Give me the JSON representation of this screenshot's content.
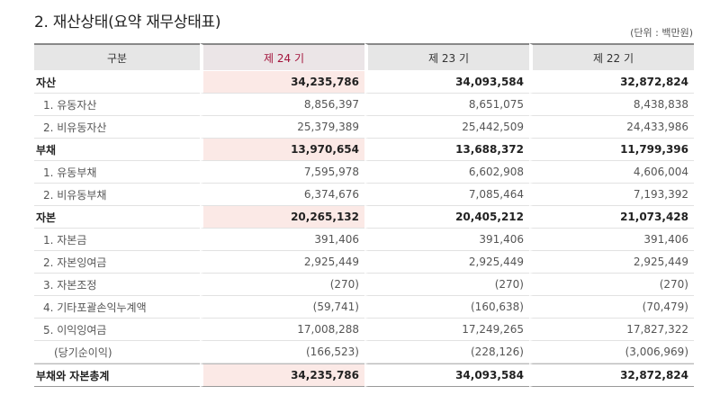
{
  "title": "2. 재산상태(요약 재무상태표)",
  "unit": "(단위 : 백만원)",
  "header": {
    "label": "구분",
    "columns": [
      "제 24 기",
      "제 23 기",
      "제 22 기"
    ]
  },
  "rows": [
    {
      "label": "자산",
      "values": [
        "34,235,786",
        "34,093,584",
        "32,872,824"
      ],
      "type": "major"
    },
    {
      "label": "1. 유동자산",
      "values": [
        "8,856,397",
        "8,651,075",
        "8,438,838"
      ],
      "type": "sub"
    },
    {
      "label": "2. 비유동자산",
      "values": [
        "25,379,389",
        "25,442,509",
        "24,433,986"
      ],
      "type": "sub"
    },
    {
      "label": "부채",
      "values": [
        "13,970,654",
        "13,688,372",
        "11,799,396"
      ],
      "type": "major"
    },
    {
      "label": "1. 유동부채",
      "values": [
        "7,595,978",
        "6,602,908",
        "4,606,004"
      ],
      "type": "sub"
    },
    {
      "label": "2. 비유동부채",
      "values": [
        "6,374,676",
        "7,085,464",
        "7,193,392"
      ],
      "type": "sub"
    },
    {
      "label": "자본",
      "values": [
        "20,265,132",
        "20,405,212",
        "21,073,428"
      ],
      "type": "major"
    },
    {
      "label": "1. 자본금",
      "values": [
        "391,406",
        "391,406",
        "391,406"
      ],
      "type": "sub"
    },
    {
      "label": "2. 자본잉여금",
      "values": [
        "2,925,449",
        "2,925,449",
        "2,925,449"
      ],
      "type": "sub"
    },
    {
      "label": "3. 자본조정",
      "values": [
        "(270)",
        "(270)",
        "(270)"
      ],
      "type": "sub"
    },
    {
      "label": "4. 기타포괄손익누계액",
      "values": [
        "(59,741)",
        "(160,638)",
        "(70,479)"
      ],
      "type": "sub"
    },
    {
      "label": "5. 이익잉여금",
      "values": [
        "17,008,288",
        "17,249,265",
        "17,827,322"
      ],
      "type": "sub"
    },
    {
      "label": "(당기순이익)",
      "values": [
        "(166,523)",
        "(228,126)",
        "(3,006,969)"
      ],
      "type": "sub2"
    },
    {
      "label": "부채와 자본총계",
      "values": [
        "34,235,786",
        "34,093,584",
        "32,872,824"
      ],
      "type": "total"
    }
  ]
}
